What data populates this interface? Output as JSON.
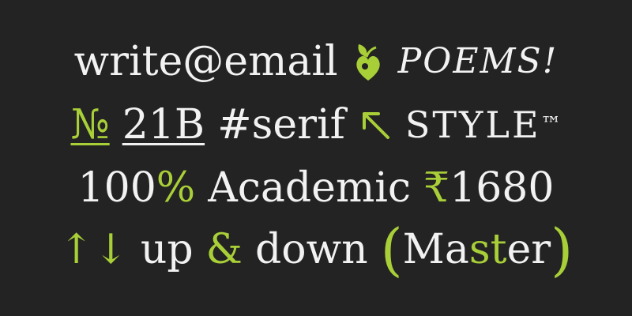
{
  "lines": {
    "l1": {
      "email": "write@email",
      "ornament_icon": "leaf-heart-ornament-icon",
      "poems": "POEMS!"
    },
    "l2": {
      "numero": "№",
      "num": "21B",
      "tag": "#serif",
      "arrow_icon": "arrow-up-left-icon",
      "style": "STYLE",
      "tm": "™"
    },
    "l3": {
      "percent_num": "100",
      "percent_sign": "%",
      "academic": "Academic",
      "rupee": "₹",
      "rupee_amount": "1680"
    },
    "l4": {
      "arrows": "↑↓",
      "up": "up",
      "amp": "&",
      "down": "down",
      "open_paren": "(",
      "master_pre": "Ma",
      "master_mid": "st",
      "master_post": "er",
      "close_paren": ")"
    }
  },
  "colors": {
    "background": "#232323",
    "text": "#f2f2f2",
    "accent": "#a9cf38"
  }
}
